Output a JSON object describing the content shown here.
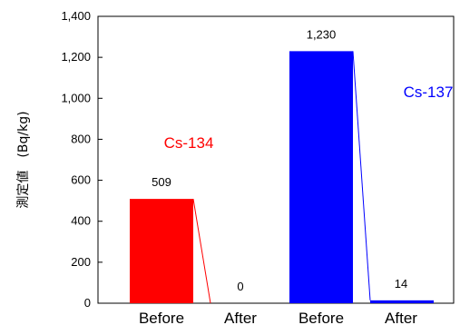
{
  "chart_data": {
    "type": "bar",
    "ylabel": "測定値　(Bq/kg)",
    "ylim": [
      0,
      1400
    ],
    "yticks": [
      0,
      200,
      400,
      600,
      800,
      1000,
      1200,
      1400
    ],
    "ytick_labels": [
      "0",
      "200",
      "400",
      "600",
      "800",
      "1,000",
      "1,200",
      "1,400"
    ],
    "grid": false,
    "bars": [
      {
        "category": "Before",
        "series": "Cs-134",
        "value": 509,
        "value_label": "509",
        "color": "#ff0000"
      },
      {
        "category": "After",
        "series": "Cs-134",
        "value": 0,
        "value_label": "0",
        "color": "#ff0000"
      },
      {
        "category": "Before",
        "series": "Cs-137",
        "value": 1230,
        "value_label": "1,230",
        "color": "#0000ff"
      },
      {
        "category": "After",
        "series": "Cs-137",
        "value": 14,
        "value_label": "14",
        "color": "#0000ff"
      }
    ],
    "series": [
      {
        "name": "Cs-134",
        "color": "#ff0000"
      },
      {
        "name": "Cs-137",
        "color": "#0000ff"
      }
    ]
  }
}
